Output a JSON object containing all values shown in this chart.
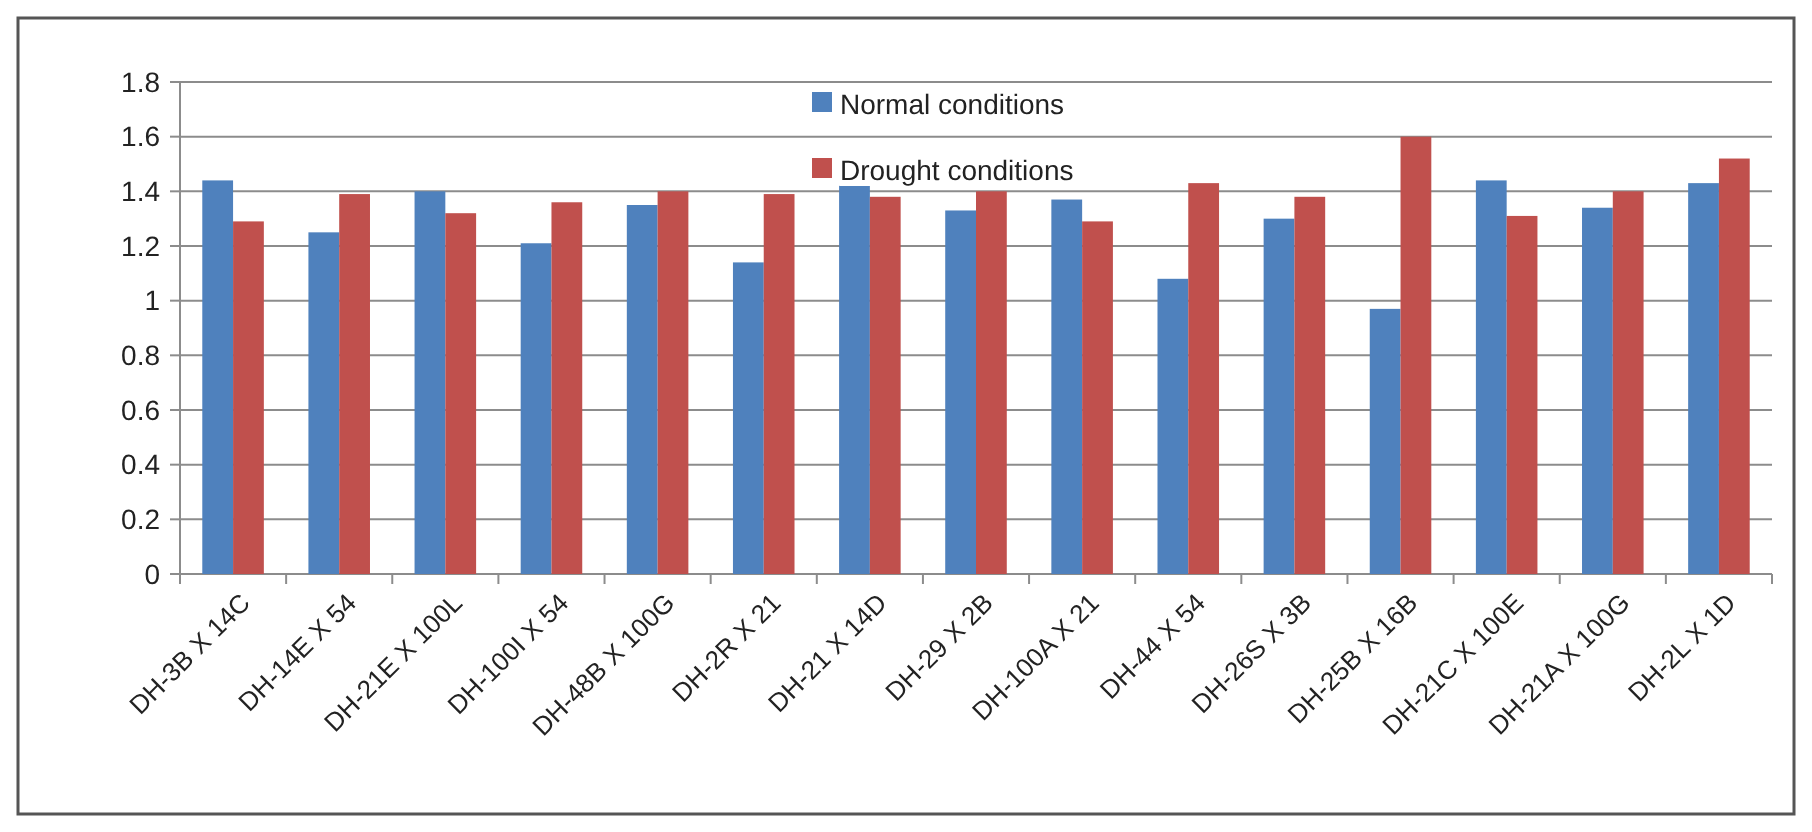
{
  "chart_data": {
    "type": "bar",
    "categories": [
      "DH-3B X 14C",
      "DH-14E X 54",
      "DH-21E X 100L",
      "DH-100I X 54",
      "DH-48B X 100G",
      "DH-2R X 21",
      "DH-21 X 14D",
      "DH-29 X 2B",
      "DH-100A X 21",
      "DH-44 X 54",
      "DH-26S X 3B",
      "DH-25B X 16B",
      "DH-21C X 100E",
      "DH-21A X 100G",
      "DH-2L X 1D"
    ],
    "series": [
      {
        "name": "Normal conditions",
        "color": "#4f81bd",
        "values": [
          1.44,
          1.25,
          1.4,
          1.21,
          1.35,
          1.14,
          1.42,
          1.33,
          1.37,
          1.08,
          1.3,
          0.97,
          1.44,
          1.34,
          1.43
        ]
      },
      {
        "name": "Drought conditions",
        "color": "#c0504d",
        "values": [
          1.29,
          1.39,
          1.32,
          1.36,
          1.4,
          1.39,
          1.38,
          1.4,
          1.29,
          1.43,
          1.38,
          1.6,
          1.31,
          1.4,
          1.52
        ]
      }
    ],
    "ylim": [
      0,
      1.8
    ],
    "yticks": [
      0,
      0.2,
      0.4,
      0.6,
      0.8,
      1,
      1.2,
      1.4,
      1.6,
      1.8
    ],
    "grid": "y",
    "legend": "top"
  }
}
